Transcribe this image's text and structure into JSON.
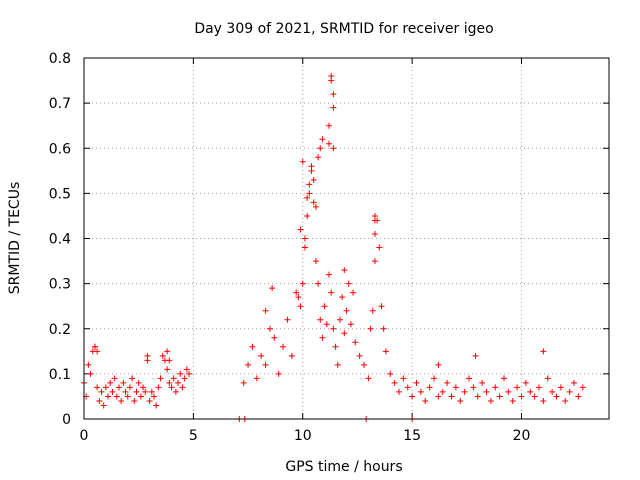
{
  "chart_data": {
    "type": "scatter",
    "title": "Day 309 of 2021, SRMTID for receiver igeo",
    "xlabel": "GPS time / hours",
    "ylabel": "SRMTID / TECUs",
    "xlim": [
      0,
      24
    ],
    "ylim": [
      0,
      0.8
    ],
    "xticks": [
      0,
      5,
      10,
      15,
      20
    ],
    "yticks": [
      0,
      0.1,
      0.2,
      0.3,
      0.4,
      0.5,
      0.6,
      0.7,
      0.8
    ],
    "grid": true,
    "legend": "none",
    "marker": "plus",
    "color": "#ff0000",
    "series": [
      {
        "name": "SRMTID",
        "x": [
          0.0,
          0.1,
          0.2,
          0.3,
          0.4,
          0.5,
          0.6,
          0.7,
          0.8,
          0.9,
          1.0,
          1.1,
          1.2,
          1.3,
          1.4,
          1.5,
          1.6,
          1.7,
          1.8,
          1.9,
          2.0,
          2.1,
          2.2,
          2.3,
          2.4,
          2.5,
          2.6,
          2.7,
          2.8,
          2.9,
          3.0,
          3.1,
          3.2,
          3.3,
          3.4,
          3.5,
          3.6,
          3.7,
          3.8,
          3.9,
          4.0,
          4.1,
          4.2,
          4.3,
          4.4,
          4.5,
          4.6,
          4.7,
          4.8,
          7.1,
          7.35,
          7.3,
          7.5,
          7.7,
          7.9,
          8.1,
          8.3,
          8.5,
          8.7,
          8.9,
          9.1,
          9.3,
          9.5,
          9.7,
          9.9,
          10.0,
          10.1,
          10.2,
          10.3,
          10.4,
          10.5,
          10.6,
          10.7,
          10.8,
          10.9,
          11.0,
          11.1,
          11.2,
          11.3,
          11.4,
          11.5,
          11.6,
          11.7,
          11.8,
          11.9,
          12.0,
          12.2,
          12.4,
          12.6,
          12.8,
          13.0,
          13.1,
          13.2,
          13.3,
          13.4,
          13.5,
          13.6,
          13.7,
          13.8,
          14.0,
          14.2,
          14.4,
          14.6,
          14.8,
          15.0,
          15.2,
          15.4,
          15.6,
          15.8,
          16.0,
          16.2,
          16.4,
          16.6,
          16.8,
          17.0,
          17.2,
          17.4,
          17.6,
          17.8,
          18.0,
          18.2,
          18.4,
          18.6,
          18.8,
          19.0,
          19.2,
          19.4,
          19.6,
          19.8,
          20.0,
          20.2,
          20.4,
          20.6,
          20.8,
          21.0,
          21.2,
          21.4,
          21.6,
          21.8,
          22.0,
          22.2,
          22.4,
          22.6,
          22.8,
          12.9,
          15.0,
          11.3,
          11.3,
          11.4,
          11.4,
          11.2,
          11.2,
          10.8,
          10.7,
          10.9,
          10.0,
          9.9,
          13.3,
          13.3,
          13.3,
          11.4,
          10.5,
          10.3,
          10.6,
          10.4,
          10.2,
          10.1,
          12.1,
          12.3,
          11.9,
          8.3,
          8.6,
          9.8,
          3.8,
          3.9,
          2.9,
          0.5,
          0.6,
          21.0,
          17.9,
          16.2
        ],
        "y": [
          0.08,
          0.05,
          0.12,
          0.1,
          0.15,
          0.16,
          0.07,
          0.04,
          0.06,
          0.03,
          0.07,
          0.05,
          0.08,
          0.06,
          0.09,
          0.05,
          0.07,
          0.04,
          0.08,
          0.06,
          0.05,
          0.07,
          0.09,
          0.04,
          0.06,
          0.08,
          0.05,
          0.07,
          0.06,
          0.13,
          0.04,
          0.06,
          0.05,
          0.03,
          0.07,
          0.09,
          0.14,
          0.13,
          0.11,
          0.08,
          0.07,
          0.09,
          0.06,
          0.08,
          0.1,
          0.07,
          0.09,
          0.11,
          0.1,
          0.0,
          0.0,
          0.08,
          0.12,
          0.16,
          0.09,
          0.14,
          0.12,
          0.2,
          0.18,
          0.1,
          0.16,
          0.22,
          0.14,
          0.28,
          0.25,
          0.3,
          0.38,
          0.45,
          0.52,
          0.56,
          0.48,
          0.35,
          0.3,
          0.22,
          0.18,
          0.25,
          0.21,
          0.32,
          0.28,
          0.2,
          0.16,
          0.12,
          0.22,
          0.27,
          0.19,
          0.24,
          0.21,
          0.17,
          0.14,
          0.12,
          0.09,
          0.2,
          0.24,
          0.35,
          0.44,
          0.38,
          0.25,
          0.2,
          0.15,
          0.1,
          0.08,
          0.06,
          0.09,
          0.07,
          0.05,
          0.08,
          0.06,
          0.04,
          0.07,
          0.09,
          0.05,
          0.06,
          0.08,
          0.05,
          0.07,
          0.04,
          0.06,
          0.09,
          0.07,
          0.05,
          0.08,
          0.06,
          0.04,
          0.07,
          0.05,
          0.09,
          0.06,
          0.04,
          0.07,
          0.05,
          0.08,
          0.06,
          0.05,
          0.07,
          0.04,
          0.09,
          0.06,
          0.05,
          0.07,
          0.04,
          0.06,
          0.08,
          0.05,
          0.07,
          0.0,
          0.0,
          0.76,
          0.75,
          0.72,
          0.69,
          0.65,
          0.61,
          0.6,
          0.58,
          0.62,
          0.57,
          0.42,
          0.45,
          0.44,
          0.41,
          0.6,
          0.53,
          0.5,
          0.47,
          0.55,
          0.49,
          0.4,
          0.3,
          0.28,
          0.33,
          0.24,
          0.29,
          0.27,
          0.15,
          0.13,
          0.14,
          0.16,
          0.15,
          0.15,
          0.14,
          0.12
        ]
      }
    ]
  }
}
